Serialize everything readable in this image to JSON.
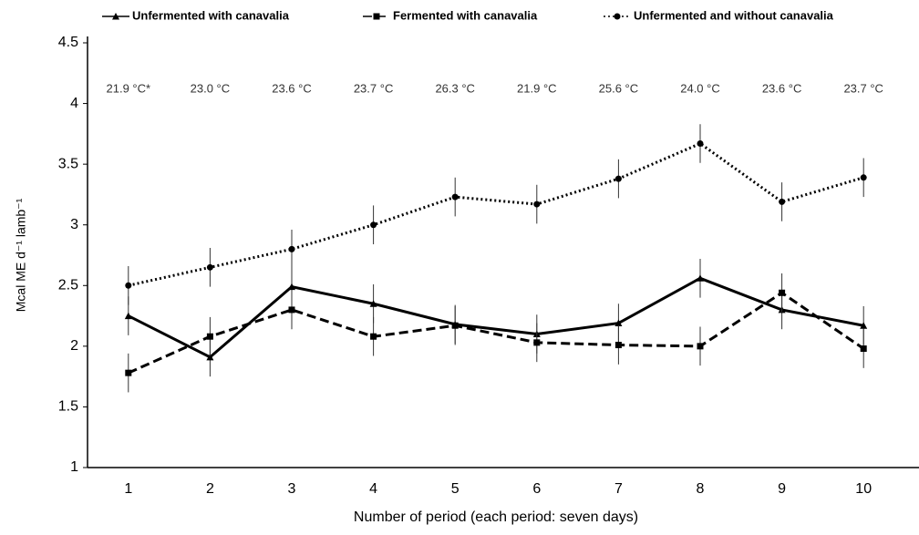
{
  "chart_data": {
    "type": "line",
    "y_label": "Mcal ME d⁻¹ lamb⁻¹",
    "x_label": "Number of period (each period: seven days)",
    "categories": [
      "1",
      "2",
      "3",
      "4",
      "5",
      "6",
      "7",
      "8",
      "9",
      "10"
    ],
    "annotations": [
      "21.9 °C*",
      "23.0 °C",
      "23.6 °C",
      "23.7 °C",
      "26.3 °C",
      "21.9 °C",
      "25.6 °C",
      "24.0 °C",
      "23.6 °C",
      "23.7 °C"
    ],
    "series": [
      {
        "name": "Unfermented with canavalia",
        "color": "#000000",
        "dash": "solid",
        "marker": "triangle",
        "values": [
          2.25,
          1.91,
          2.49,
          2.35,
          2.18,
          2.1,
          2.19,
          2.56,
          2.3,
          2.17
        ],
        "errors": [
          0.16,
          0.16,
          0.16,
          0.16,
          0.16,
          0.16,
          0.16,
          0.16,
          0.16,
          0.16
        ]
      },
      {
        "name": "Fermented with canavalia",
        "color": "#000000",
        "dash": "dashed",
        "marker": "square",
        "values": [
          1.78,
          2.08,
          2.3,
          2.08,
          2.17,
          2.03,
          2.01,
          2.0,
          2.44,
          1.98
        ],
        "errors": [
          0.16,
          0.16,
          0.16,
          0.16,
          0.16,
          0.16,
          0.16,
          0.16,
          0.16,
          0.16
        ]
      },
      {
        "name": "Unfermented  and without canavalia",
        "color": "#000000",
        "dash": "dotted",
        "marker": "circle",
        "values": [
          2.5,
          2.65,
          2.8,
          3.0,
          3.23,
          3.17,
          3.38,
          3.67,
          3.19,
          3.39
        ],
        "errors": [
          0.16,
          0.16,
          0.16,
          0.16,
          0.16,
          0.16,
          0.16,
          0.16,
          0.16,
          0.16
        ]
      }
    ],
    "ylim": [
      1,
      4.5
    ],
    "yticks": [
      1,
      1.5,
      2,
      2.5,
      3,
      3.5,
      4,
      4.5
    ],
    "grid": false,
    "legend": "top"
  }
}
